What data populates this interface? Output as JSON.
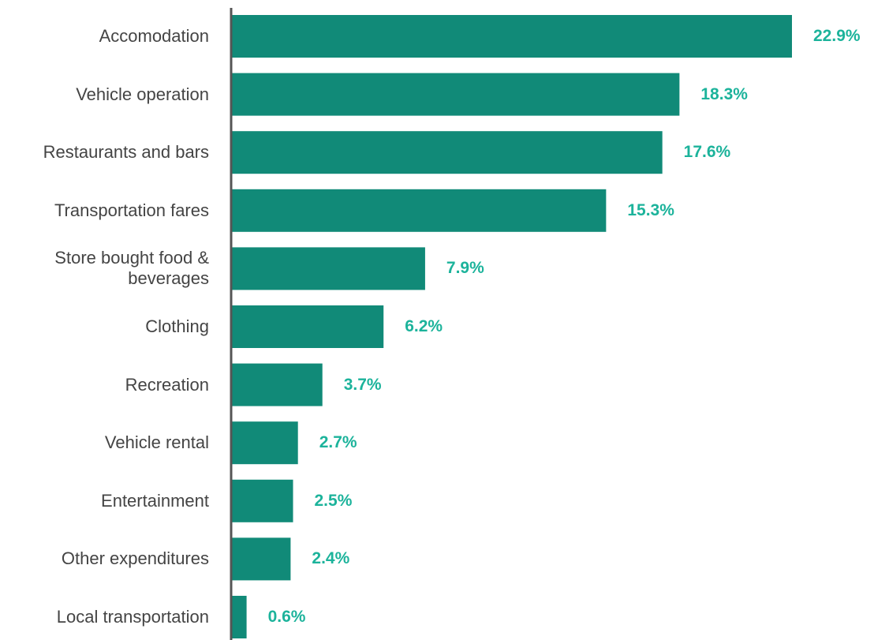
{
  "chart_data": {
    "type": "bar",
    "orientation": "horizontal",
    "categories": [
      "Accomodation",
      "Vehicle operation",
      "Restaurants and bars",
      "Transportation fares",
      "Store bought food & beverages",
      "Clothing",
      "Recreation",
      "Vehicle rental",
      "Entertainment",
      "Other expenditures",
      "Local transportation"
    ],
    "values": [
      22.9,
      18.3,
      17.6,
      15.3,
      7.9,
      6.2,
      3.7,
      2.7,
      2.5,
      2.4,
      0.6
    ],
    "value_labels": [
      "22.9%",
      "18.3%",
      "17.6%",
      "15.3%",
      "7.9%",
      "6.2%",
      "3.7%",
      "2.7%",
      "2.5%",
      "2.4%",
      "0.6%"
    ],
    "color": "#118a78",
    "label_color": "#1cb39b"
  }
}
